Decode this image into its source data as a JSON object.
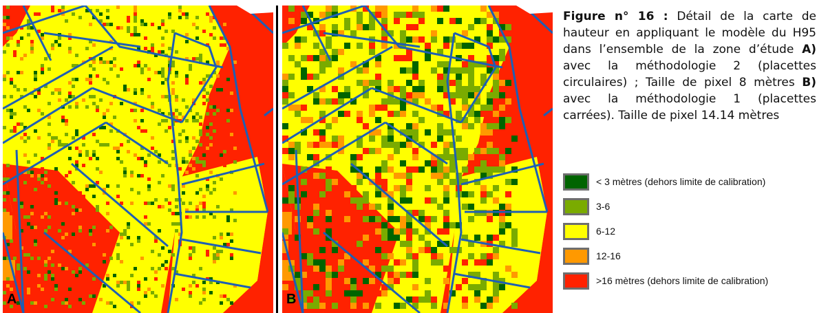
{
  "panels": [
    {
      "id": "A",
      "label": "A"
    },
    {
      "id": "B",
      "label": "B"
    }
  ],
  "caption": {
    "figure_label": "Figure n° 16 :",
    "part1": " Détail de la carte de hauteur en appliquant le modèle du H95 dans l’ensemble de la zone d’étude ",
    "a_label": "A)",
    "part2": " avec la méthodologie 2 (placettes circulaires) ; Taille de pixel 8 mètres ",
    "b_label": "B)",
    "part3": " avec la méthodologie 1 (placettes carrées). Taille de pixel 14.14 mètres"
  },
  "legend": [
    {
      "label": "< 3 mètres (dehors limite de calibration)",
      "color": "#006400"
    },
    {
      "label": "3-6",
      "color": "#7aab00"
    },
    {
      "label": "6-12",
      "color": "#ffff00"
    },
    {
      "label": "12-16",
      "color": "#ff9900"
    },
    {
      "label": ">16 mètres (dehors limite de calibration)",
      "color": "#ff2200"
    }
  ],
  "colors": {
    "very_low": "#006400",
    "low": "#7aab00",
    "mid": "#ffff00",
    "high": "#ff9900",
    "very_high": "#ff2200",
    "parcel_lines": "#1e5fb4"
  }
}
